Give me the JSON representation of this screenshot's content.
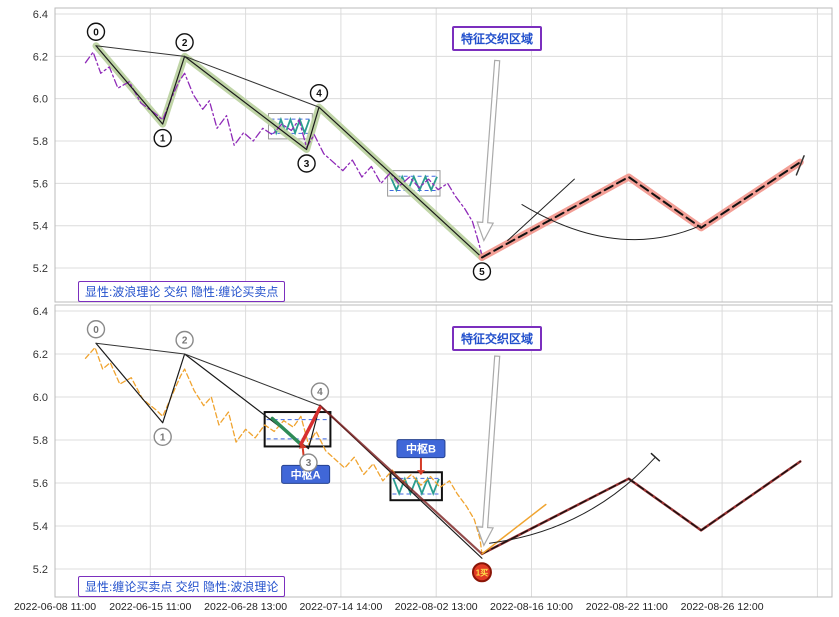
{
  "meta": {
    "bg": "#ffffff",
    "grid": "#dcdcdc",
    "border": "#bbbbbb",
    "tick_color": "#333333",
    "accent_purple": "#7b2fbe",
    "accent_blue": "#2250cc",
    "pivot_label_bg": "#4067d8"
  },
  "x_axis": {
    "labels": [
      "2022-06-08 11:00",
      "2022-06-15 11:00",
      "2022-06-28 13:00",
      "2022-07-14 14:00",
      "2022-08-02 13:00",
      "2022-08-16 10:00",
      "2022-08-22 11:00",
      "2022-08-26 12:00"
    ]
  },
  "y_ticks": [
    "6.4",
    "6.2",
    "6.0",
    "5.8",
    "5.6",
    "5.4",
    "5.2"
  ],
  "chart_data": [
    {
      "type": "line",
      "panel": "top",
      "ylim": [
        5.2,
        6.4
      ],
      "annotation": "特征交织区域",
      "legend_label": "显性:波浪理论 交织 隐性:缠论买卖点",
      "marker_style": {
        "stroke": "#111111",
        "text": "#111111",
        "fill": "#ffffff"
      },
      "wave_points": [
        {
          "n": "0",
          "x": 0.43,
          "v": 6.25,
          "pos": "above"
        },
        {
          "n": "1",
          "x": 1.13,
          "v": 5.88,
          "pos": "below"
        },
        {
          "n": "2",
          "x": 1.36,
          "v": 6.2,
          "pos": "above"
        },
        {
          "n": "3",
          "x": 2.64,
          "v": 5.76,
          "pos": "below"
        },
        {
          "n": "4",
          "x": 2.77,
          "v": 5.96,
          "pos": "above"
        },
        {
          "n": "5",
          "x": 4.48,
          "v": 5.25,
          "pos": "below"
        }
      ],
      "series": [
        {
          "name": "wave-band",
          "color": "#bdd3a2",
          "width": 7,
          "opacity": 0.95,
          "points": [
            [
              0.43,
              6.25
            ],
            [
              1.13,
              5.88
            ],
            [
              1.36,
              6.2
            ],
            [
              2.64,
              5.76
            ],
            [
              2.77,
              5.96
            ],
            [
              4.48,
              5.25
            ]
          ]
        },
        {
          "name": "price",
          "color": "#8f2bb8",
          "width": 1.3,
          "dash": "7 3 2 3",
          "points": [
            [
              0.32,
              6.17
            ],
            [
              0.4,
              6.22
            ],
            [
              0.48,
              6.12
            ],
            [
              0.57,
              6.15
            ],
            [
              0.66,
              6.05
            ],
            [
              0.78,
              6.08
            ],
            [
              0.9,
              5.98
            ],
            [
              1.05,
              5.93
            ],
            [
              1.13,
              5.9
            ],
            [
              1.22,
              6.0
            ],
            [
              1.3,
              6.08
            ],
            [
              1.36,
              6.12
            ],
            [
              1.45,
              6.02
            ],
            [
              1.55,
              5.95
            ],
            [
              1.62,
              5.99
            ],
            [
              1.7,
              5.86
            ],
            [
              1.8,
              5.92
            ],
            [
              1.88,
              5.78
            ],
            [
              1.98,
              5.84
            ],
            [
              2.08,
              5.8
            ],
            [
              2.18,
              5.86
            ],
            [
              2.28,
              5.83
            ],
            [
              2.38,
              5.88
            ],
            [
              2.48,
              5.85
            ],
            [
              2.56,
              5.9
            ],
            [
              2.64,
              5.77
            ],
            [
              2.72,
              5.83
            ],
            [
              2.82,
              5.74
            ],
            [
              2.92,
              5.7
            ],
            [
              3.02,
              5.66
            ],
            [
              3.12,
              5.71
            ],
            [
              3.22,
              5.63
            ],
            [
              3.32,
              5.68
            ],
            [
              3.42,
              5.6
            ],
            [
              3.52,
              5.65
            ],
            [
              3.62,
              5.59
            ],
            [
              3.72,
              5.63
            ],
            [
              3.82,
              5.58
            ],
            [
              3.92,
              5.62
            ],
            [
              4.02,
              5.57
            ],
            [
              4.12,
              5.6
            ],
            [
              4.2,
              5.54
            ],
            [
              4.3,
              5.48
            ],
            [
              4.38,
              5.42
            ],
            [
              4.44,
              5.33
            ],
            [
              4.48,
              5.26
            ]
          ]
        },
        {
          "name": "wave-line",
          "color": "#1a1a1a",
          "width": 1.2,
          "points": [
            [
              0.43,
              6.25
            ],
            [
              1.13,
              5.88
            ],
            [
              1.36,
              6.2
            ],
            [
              2.64,
              5.76
            ],
            [
              2.77,
              5.96
            ],
            [
              4.48,
              5.25
            ]
          ]
        },
        {
          "name": "trendline-0-2",
          "color": "#333333",
          "width": 1,
          "points": [
            [
              0.43,
              6.25
            ],
            [
              1.36,
              6.2
            ]
          ]
        },
        {
          "name": "trendline-2-4",
          "color": "#333333",
          "width": 1,
          "points": [
            [
              1.36,
              6.2
            ],
            [
              2.77,
              5.96
            ]
          ]
        },
        {
          "name": "forecast-band",
          "color": "#f29a90",
          "width": 7,
          "opacity": 0.95,
          "points": [
            [
              4.48,
              5.25
            ],
            [
              6.02,
              5.63
            ],
            [
              6.78,
              5.39
            ],
            [
              7.82,
              5.7
            ]
          ]
        },
        {
          "name": "forecast-dash",
          "color": "#111111",
          "width": 2,
          "dash": "9 5",
          "points": [
            [
              4.48,
              5.25
            ],
            [
              6.02,
              5.63
            ],
            [
              6.78,
              5.39
            ],
            [
              7.82,
              5.7
            ]
          ]
        },
        {
          "name": "guide-line",
          "color": "#222222",
          "width": 1,
          "points": [
            [
              4.75,
              5.33
            ],
            [
              5.45,
              5.62
            ]
          ]
        },
        {
          "name": "guide-arc",
          "color": "#222222",
          "width": 1,
          "curve": true,
          "points": [
            [
              4.9,
              5.5
            ],
            [
              5.9,
              5.23
            ],
            [
              6.77,
              5.4
            ]
          ]
        },
        {
          "name": "forecast-cap",
          "color": "#333333",
          "width": 1.5,
          "points": [
            [
              7.78,
              5.64
            ],
            [
              7.86,
              5.73
            ]
          ]
        }
      ],
      "boxes": [
        {
          "x1": 2.24,
          "v1": 5.81,
          "x2": 2.7,
          "v2": 5.93,
          "stroke": "#999999",
          "width": 1,
          "zigzag": true,
          "dashed": true
        },
        {
          "x1": 3.49,
          "v1": 5.54,
          "x2": 4.04,
          "v2": 5.66,
          "stroke": "#999999",
          "width": 1,
          "zigzag": true,
          "dashed": true
        }
      ],
      "arrow": {
        "from": [
          4.64,
          6.18
        ],
        "to": [
          4.5,
          5.33
        ]
      }
    },
    {
      "type": "line",
      "panel": "bottom",
      "ylim": [
        5.2,
        6.4
      ],
      "annotation": "特征交织区域",
      "legend_label": "显性:缠论买卖点 交织 隐性:波浪理论",
      "marker_style": {
        "stroke": "#8a8a8a",
        "text": "#777777",
        "fill": "#ffffff"
      },
      "wave_points": [
        {
          "n": "0",
          "x": 0.43,
          "v": 6.25,
          "pos": "above"
        },
        {
          "n": "1",
          "x": 1.13,
          "v": 5.88,
          "pos": "below"
        },
        {
          "n": "2",
          "x": 1.36,
          "v": 6.2,
          "pos": "above"
        },
        {
          "n": "3",
          "x": 2.66,
          "v": 5.76,
          "pos": "below"
        },
        {
          "n": "4",
          "x": 2.78,
          "v": 5.96,
          "pos": "above"
        },
        {
          "n": "1买",
          "x": 4.48,
          "v": 5.25,
          "pos": "below",
          "style": "buy"
        }
      ],
      "series": [
        {
          "name": "price",
          "color": "#f0a430",
          "width": 1.3,
          "dash": "5 3",
          "points": [
            [
              0.32,
              6.18
            ],
            [
              0.42,
              6.23
            ],
            [
              0.5,
              6.13
            ],
            [
              0.58,
              6.16
            ],
            [
              0.68,
              6.06
            ],
            [
              0.8,
              6.09
            ],
            [
              0.92,
              5.99
            ],
            [
              1.06,
              5.94
            ],
            [
              1.13,
              5.91
            ],
            [
              1.24,
              6.02
            ],
            [
              1.32,
              6.1
            ],
            [
              1.36,
              6.13
            ],
            [
              1.46,
              6.03
            ],
            [
              1.56,
              5.96
            ],
            [
              1.64,
              6.0
            ],
            [
              1.72,
              5.87
            ],
            [
              1.82,
              5.93
            ],
            [
              1.9,
              5.79
            ],
            [
              2.0,
              5.85
            ],
            [
              2.1,
              5.81
            ],
            [
              2.2,
              5.87
            ],
            [
              2.3,
              5.84
            ],
            [
              2.4,
              5.89
            ],
            [
              2.5,
              5.86
            ],
            [
              2.58,
              5.91
            ],
            [
              2.66,
              5.78
            ],
            [
              2.74,
              5.84
            ],
            [
              2.84,
              5.75
            ],
            [
              2.94,
              5.71
            ],
            [
              3.04,
              5.67
            ],
            [
              3.14,
              5.72
            ],
            [
              3.24,
              5.64
            ],
            [
              3.34,
              5.69
            ],
            [
              3.44,
              5.61
            ],
            [
              3.54,
              5.66
            ],
            [
              3.64,
              5.6
            ],
            [
              3.74,
              5.64
            ],
            [
              3.84,
              5.59
            ],
            [
              3.94,
              5.63
            ],
            [
              4.04,
              5.58
            ],
            [
              4.14,
              5.61
            ],
            [
              4.22,
              5.55
            ],
            [
              4.32,
              5.49
            ],
            [
              4.4,
              5.43
            ],
            [
              4.46,
              5.34
            ],
            [
              4.48,
              5.27
            ]
          ]
        },
        {
          "name": "wave-line",
          "color": "#1a1a1a",
          "width": 1.2,
          "points": [
            [
              0.43,
              6.25
            ],
            [
              1.13,
              5.88
            ],
            [
              1.36,
              6.2
            ],
            [
              2.66,
              5.76
            ],
            [
              2.78,
              5.96
            ],
            [
              4.48,
              5.25
            ]
          ]
        },
        {
          "name": "trendline-0-2",
          "color": "#333333",
          "width": 1,
          "points": [
            [
              0.43,
              6.25
            ],
            [
              1.36,
              6.2
            ]
          ]
        },
        {
          "name": "trendline-2-4",
          "color": "#333333",
          "width": 1,
          "points": [
            [
              1.36,
              6.2
            ],
            [
              2.78,
              5.96
            ]
          ]
        },
        {
          "name": "down-stroke",
          "color": "#7a1f1f",
          "width": 2.2,
          "opacity": 0.8,
          "points": [
            [
              2.78,
              5.96
            ],
            [
              4.48,
              5.27
            ]
          ]
        },
        {
          "name": "pivot-a-down-stroke",
          "color": "#2e8b57",
          "width": 3.5,
          "points": [
            [
              2.28,
              5.9
            ],
            [
              2.58,
              5.78
            ]
          ]
        },
        {
          "name": "pivot-a-up-stroke",
          "color": "#d62f2f",
          "width": 3.5,
          "points": [
            [
              2.58,
              5.78
            ],
            [
              2.78,
              5.95
            ]
          ]
        },
        {
          "name": "forecast-line",
          "color": "#8b1a1a",
          "width": 2.5,
          "opacity": 0.9,
          "points": [
            [
              4.48,
              5.27
            ],
            [
              6.02,
              5.62
            ],
            [
              6.78,
              5.38
            ],
            [
              7.82,
              5.7
            ]
          ]
        },
        {
          "name": "forecast-dash",
          "color": "#111111",
          "width": 1.3,
          "dash": "7 4",
          "points": [
            [
              4.48,
              5.27
            ],
            [
              6.02,
              5.62
            ],
            [
              6.78,
              5.38
            ],
            [
              7.82,
              5.7
            ]
          ]
        },
        {
          "name": "post-buy-segment",
          "color": "#f0a430",
          "width": 1.5,
          "points": [
            [
              4.48,
              5.27
            ],
            [
              5.15,
              5.5
            ]
          ]
        },
        {
          "name": "guide-arc",
          "color": "#222222",
          "width": 1,
          "curve": true,
          "cap": true,
          "points": [
            [
              4.56,
              5.32
            ],
            [
              5.6,
              5.38
            ],
            [
              6.3,
              5.72
            ]
          ]
        }
      ],
      "boxes": [
        {
          "x1": 2.2,
          "v1": 5.77,
          "x2": 2.89,
          "v2": 5.93,
          "stroke": "#111111",
          "width": 2,
          "zigzag": false,
          "dashed": true
        },
        {
          "x1": 3.52,
          "v1": 5.52,
          "x2": 4.06,
          "v2": 5.65,
          "stroke": "#111111",
          "width": 2,
          "zigzag": true,
          "dashed": true
        }
      ],
      "pivot_labels": [
        {
          "text": "中枢A",
          "x": 2.63,
          "v": 5.64,
          "arrow_from": [
            2.62,
            5.679
          ],
          "arrow_to": [
            2.6,
            5.762
          ]
        },
        {
          "text": "中枢B",
          "x": 3.84,
          "v": 5.76,
          "arrow_from": [
            3.84,
            5.716
          ],
          "arrow_to": [
            3.84,
            5.66
          ]
        }
      ],
      "arrow": {
        "from": [
          4.64,
          6.19
        ],
        "to": [
          4.5,
          5.31
        ]
      }
    }
  ]
}
